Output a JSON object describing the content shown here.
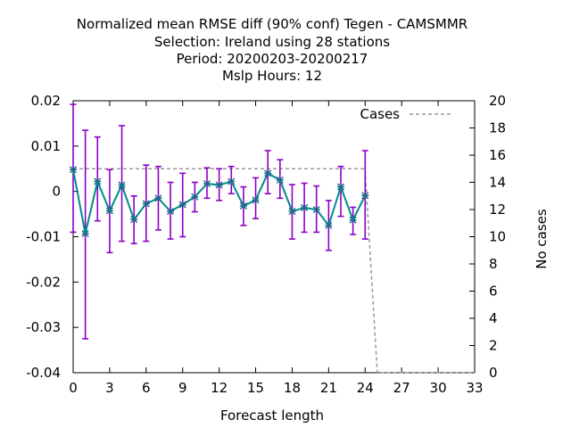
{
  "chart_data": {
    "type": "line",
    "title_lines": [
      "Normalized mean RMSE diff (90% conf) Tegen - CAMSMMR",
      "Selection: Ireland using    28 stations",
      "Period: 20200203-20200217",
      "Mslp   Hours:  12"
    ],
    "xlabel": "Forecast length",
    "ylabel_right": "No cases",
    "xlim": [
      0,
      33
    ],
    "ylim": [
      -0.04,
      0.02
    ],
    "y2lim": [
      0,
      20
    ],
    "x_ticks": [
      "0",
      "3",
      "6",
      "9",
      "12",
      "15",
      "18",
      "21",
      "24",
      "27",
      "30",
      "33"
    ],
    "y_ticks": [
      "0.02",
      "0.01",
      "0",
      "-0.01",
      "-0.02",
      "-0.03",
      "-0.04"
    ],
    "y2_ticks": [
      "20",
      "18",
      "16",
      "14",
      "12",
      "10",
      "8",
      "6",
      "4",
      "2",
      "0"
    ],
    "legend_position": "top-right",
    "series": [
      {
        "name": "",
        "color": "#008b8b",
        "errorbar_color": "#8b00c8",
        "x": [
          0,
          1,
          2,
          3,
          4,
          5,
          6,
          7,
          8,
          9,
          10,
          11,
          12,
          13,
          14,
          15,
          16,
          17,
          18,
          19,
          20,
          21,
          22,
          23,
          24
        ],
        "y": [
          0.0048,
          -0.0093,
          0.0022,
          -0.0043,
          0.0014,
          -0.0062,
          -0.0027,
          -0.0015,
          -0.0044,
          -0.0029,
          -0.0012,
          0.0017,
          0.0014,
          0.0022,
          -0.0032,
          -0.0019,
          0.004,
          0.0025,
          -0.0044,
          -0.0036,
          -0.004,
          -0.0075,
          0.001,
          -0.0063,
          -0.0009
        ],
        "err_low": [
          -0.009,
          -0.0325,
          -0.0065,
          -0.0135,
          -0.011,
          -0.0115,
          -0.011,
          -0.0085,
          -0.0105,
          -0.01,
          -0.0045,
          -0.0015,
          -0.002,
          -0.0005,
          -0.0075,
          -0.006,
          -0.0005,
          -0.0015,
          -0.0105,
          -0.009,
          -0.009,
          -0.013,
          -0.0055,
          -0.0095,
          -0.0105
        ],
        "err_high": [
          0.0192,
          0.0135,
          0.012,
          0.0048,
          0.0145,
          -0.001,
          0.0058,
          0.0055,
          0.002,
          0.004,
          0.002,
          0.0052,
          0.005,
          0.0055,
          0.001,
          0.003,
          0.009,
          0.007,
          0.0015,
          0.0018,
          0.0012,
          -0.002,
          0.0055,
          -0.0035,
          0.009
        ]
      },
      {
        "name": "Cases",
        "axis": "right",
        "color": "#999999",
        "style": "dashed",
        "x": [
          0,
          24,
          24,
          25,
          33
        ],
        "y": [
          15,
          15,
          14.9,
          0,
          0
        ]
      }
    ]
  }
}
